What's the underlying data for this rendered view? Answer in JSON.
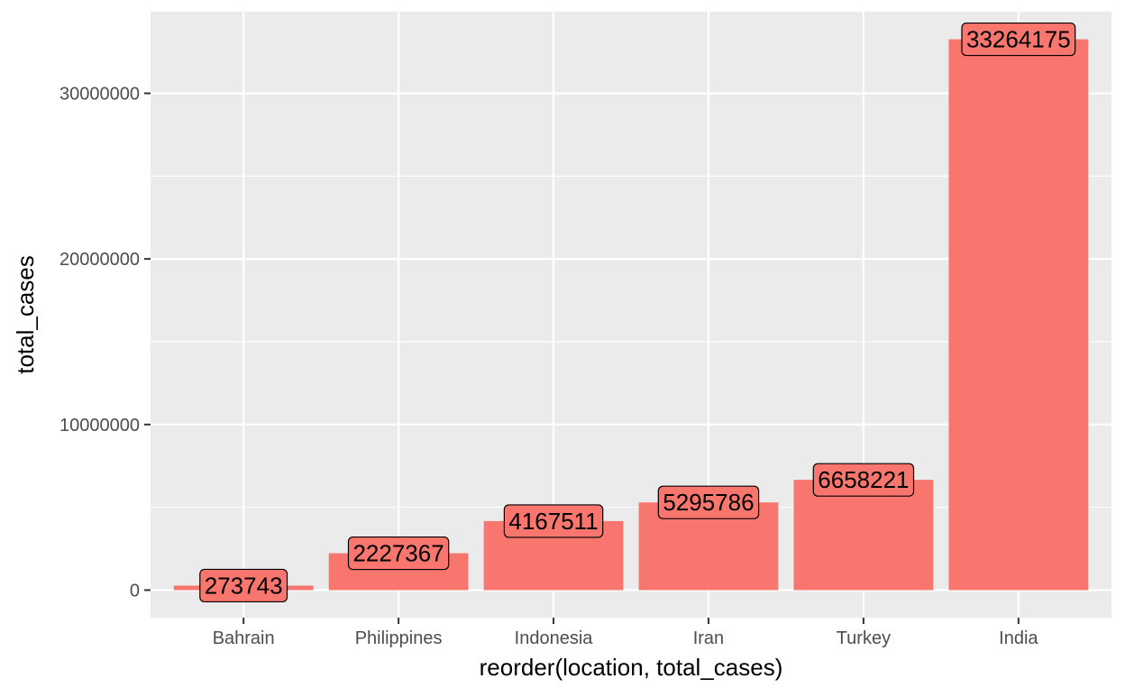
{
  "chart_data": {
    "type": "bar",
    "title": "",
    "xlabel": "reorder(location, total_cases)",
    "ylabel": "total_cases",
    "categories": [
      "Bahrain",
      "Philippines",
      "Indonesia",
      "Iran",
      "Turkey",
      "India"
    ],
    "values": [
      273743,
      2227367,
      4167511,
      5295786,
      6658221,
      33264175
    ],
    "data_labels": [
      "273743",
      "2227367",
      "4167511",
      "5295786",
      "6658221",
      "33264175"
    ],
    "y_ticks": [
      0,
      10000000,
      20000000,
      30000000
    ],
    "y_tick_labels": [
      "0",
      "10000000",
      "20000000",
      "30000000"
    ],
    "ylim": [
      -1663208.75,
      34927383.75
    ],
    "grid": true,
    "legend": "none",
    "colors": {
      "bar": "#F8766D",
      "panel": "#EBEBEB",
      "grid": "#FFFFFF",
      "tick_text": "#4D4D4D",
      "tick_mark": "#333333"
    }
  }
}
